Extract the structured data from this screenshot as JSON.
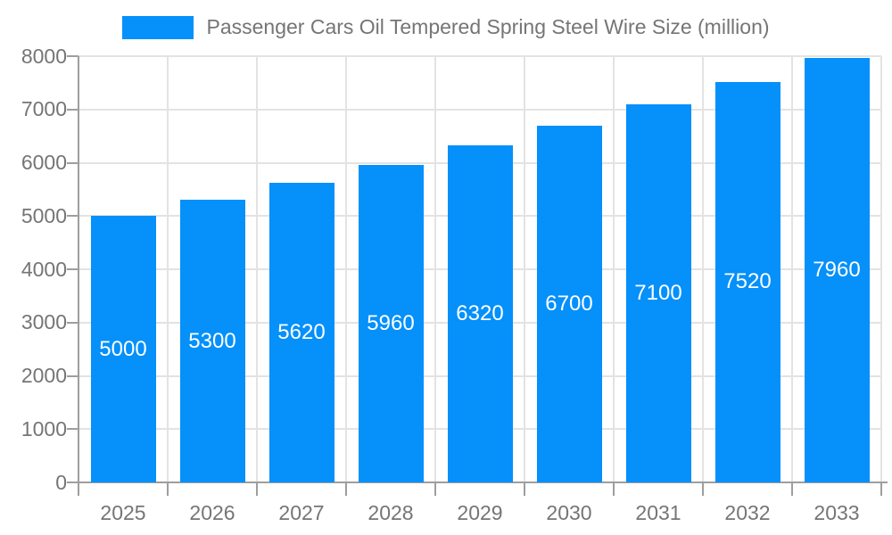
{
  "chart_data": {
    "type": "bar",
    "title": "Passenger Cars Oil Tempered Spring Steel Wire Size (million)",
    "categories": [
      "2025",
      "2026",
      "2027",
      "2028",
      "2029",
      "2030",
      "2031",
      "2032",
      "2033"
    ],
    "values": [
      5000,
      5300,
      5620,
      5960,
      6320,
      6700,
      7100,
      7520,
      7960
    ],
    "xlabel": "",
    "ylabel": "",
    "ylim": [
      0,
      8000
    ],
    "ytick_step": 1000,
    "yticks": [
      "0",
      "1000",
      "2000",
      "3000",
      "4000",
      "5000",
      "6000",
      "7000",
      "8000"
    ],
    "grid": true,
    "legend_position": "top-center",
    "bar_label_position": "inside-center",
    "colors": {
      "bar": "#0590FA",
      "bar_label": "#FFFFFF",
      "axis": "#9E9E9E",
      "grid": "#E3E3E3",
      "tick_text": "#757575",
      "legend_text": "#757575",
      "background": "#FFFFFF"
    }
  }
}
